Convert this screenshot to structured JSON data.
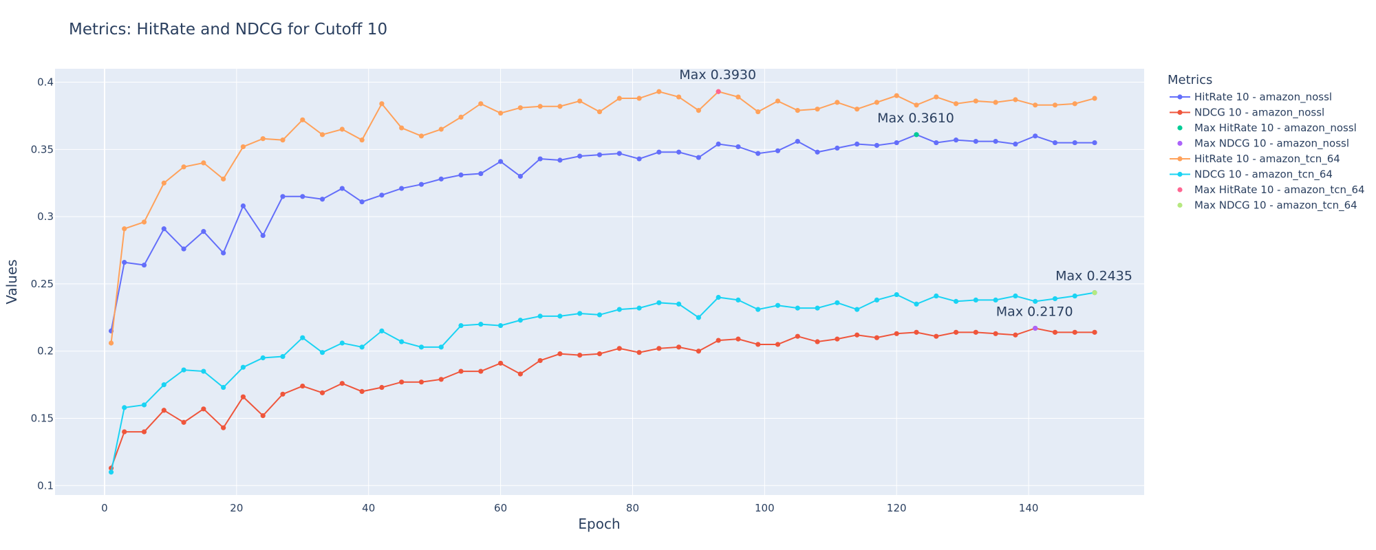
{
  "chart_data": {
    "type": "line",
    "title": "Metrics: HitRate and NDCG for Cutoff 10",
    "xlabel": "Epoch",
    "ylabel": "Values",
    "xlim": [
      -7.5,
      157.5
    ],
    "ylim": [
      0.093,
      0.41
    ],
    "xticks": [
      0,
      20,
      40,
      60,
      80,
      100,
      120,
      140
    ],
    "yticks": [
      0.1,
      0.15,
      0.2,
      0.25,
      0.3,
      0.35,
      0.4
    ],
    "ytick_labels": [
      "0.1",
      "0.15",
      "0.2",
      "0.25",
      "0.3",
      "0.35",
      "0.4"
    ],
    "grid": true,
    "legend_title": "Metrics",
    "legend_position": "right",
    "x": [
      1,
      3,
      6,
      9,
      12,
      15,
      18,
      21,
      24,
      27,
      30,
      33,
      36,
      39,
      42,
      45,
      48,
      51,
      54,
      57,
      60,
      63,
      66,
      69,
      72,
      75,
      78,
      81,
      84,
      87,
      90,
      93,
      96,
      99,
      102,
      105,
      108,
      111,
      114,
      117,
      120,
      123,
      126,
      129,
      132,
      135,
      138,
      141,
      144,
      147,
      150
    ],
    "series": [
      {
        "name": "HitRate 10 - amazon_nossl",
        "color": "#636efa",
        "mode": "lines+markers",
        "values": [
          0.215,
          0.266,
          0.264,
          0.291,
          0.276,
          0.289,
          0.273,
          0.308,
          0.286,
          0.315,
          0.315,
          0.313,
          0.321,
          0.311,
          0.316,
          0.321,
          0.324,
          0.328,
          0.331,
          0.332,
          0.341,
          0.33,
          0.343,
          0.342,
          0.345,
          0.346,
          0.347,
          0.343,
          0.348,
          0.348,
          0.344,
          0.354,
          0.352,
          0.347,
          0.349,
          0.356,
          0.348,
          0.351,
          0.354,
          0.353,
          0.355,
          0.361,
          0.355,
          0.357,
          0.356,
          0.356,
          0.354,
          0.36,
          0.355,
          0.355,
          0.355
        ]
      },
      {
        "name": "NDCG 10 - amazon_nossl",
        "color": "#ef553b",
        "mode": "lines+markers",
        "values": [
          0.113,
          0.14,
          0.14,
          0.156,
          0.147,
          0.157,
          0.143,
          0.166,
          0.152,
          0.168,
          0.174,
          0.169,
          0.176,
          0.17,
          0.173,
          0.177,
          0.177,
          0.179,
          0.185,
          0.185,
          0.191,
          0.183,
          0.193,
          0.198,
          0.197,
          0.198,
          0.202,
          0.199,
          0.202,
          0.203,
          0.2,
          0.208,
          0.209,
          0.205,
          0.205,
          0.211,
          0.207,
          0.209,
          0.212,
          0.21,
          0.213,
          0.214,
          0.211,
          0.214,
          0.214,
          0.213,
          0.212,
          0.217,
          0.214,
          0.214,
          0.214
        ]
      },
      {
        "name": "Max HitRate 10 - amazon_nossl",
        "color": "#00cc96",
        "mode": "markers",
        "x": [
          123
        ],
        "values": [
          0.361
        ]
      },
      {
        "name": "Max NDCG 10 - amazon_nossl",
        "color": "#ab63fa",
        "mode": "markers",
        "x": [
          141
        ],
        "values": [
          0.217
        ]
      },
      {
        "name": "HitRate 10 - amazon_tcn_64",
        "color": "#ffa15a",
        "mode": "lines+markers",
        "values": [
          0.206,
          0.291,
          0.296,
          0.325,
          0.337,
          0.34,
          0.328,
          0.352,
          0.358,
          0.357,
          0.372,
          0.361,
          0.365,
          0.357,
          0.384,
          0.366,
          0.36,
          0.365,
          0.374,
          0.384,
          0.377,
          0.381,
          0.382,
          0.382,
          0.386,
          0.378,
          0.388,
          0.388,
          0.393,
          0.389,
          0.379,
          0.393,
          0.389,
          0.378,
          0.386,
          0.379,
          0.38,
          0.385,
          0.38,
          0.385,
          0.39,
          0.383,
          0.389,
          0.384,
          0.386,
          0.385,
          0.387,
          0.383,
          0.383,
          0.384,
          0.388
        ]
      },
      {
        "name": "NDCG 10 - amazon_tcn_64",
        "color": "#19d3f3",
        "mode": "lines+markers",
        "values": [
          0.11,
          0.158,
          0.16,
          0.175,
          0.186,
          0.185,
          0.173,
          0.188,
          0.195,
          0.196,
          0.21,
          0.199,
          0.206,
          0.203,
          0.215,
          0.207,
          0.203,
          0.203,
          0.219,
          0.22,
          0.219,
          0.223,
          0.226,
          0.226,
          0.228,
          0.227,
          0.231,
          0.232,
          0.236,
          0.235,
          0.225,
          0.24,
          0.238,
          0.231,
          0.234,
          0.232,
          0.232,
          0.236,
          0.231,
          0.238,
          0.242,
          0.235,
          0.241,
          0.237,
          0.238,
          0.238,
          0.241,
          0.237,
          0.239,
          0.241,
          0.2435
        ]
      },
      {
        "name": "Max HitRate 10 - amazon_tcn_64",
        "color": "#ff6692",
        "mode": "markers",
        "x": [
          93
        ],
        "values": [
          0.393
        ]
      },
      {
        "name": "Max NDCG 10 - amazon_tcn_64",
        "color": "#b6e880",
        "mode": "markers",
        "x": [
          150
        ],
        "values": [
          0.2435
        ]
      }
    ],
    "annotations": [
      {
        "text": "Max 0.3930",
        "x": 93,
        "y": 0.393
      },
      {
        "text": "Max 0.3610",
        "x": 123,
        "y": 0.361
      },
      {
        "text": "Max 0.2435",
        "x": 150,
        "y": 0.2435
      },
      {
        "text": "Max 0.2170",
        "x": 141,
        "y": 0.217
      }
    ]
  }
}
